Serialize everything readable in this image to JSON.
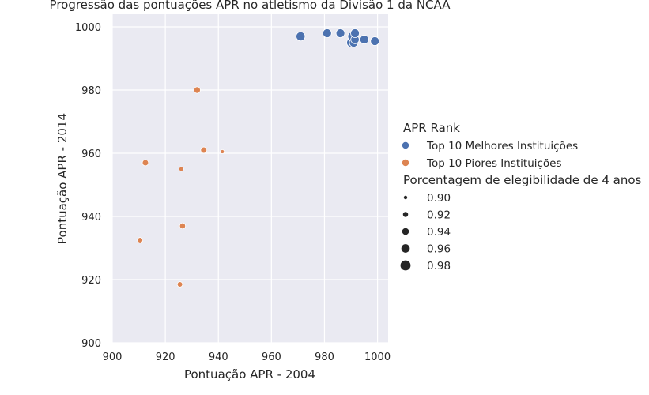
{
  "chart_data": {
    "type": "scatter",
    "title": "Progressão das pontuações APR no atletismo da Divisão 1 da NCAA",
    "xlabel": "Pontuação APR - 2004",
    "ylabel": "Pontuação APR - 2014",
    "xlim": [
      900,
      1004
    ],
    "ylim": [
      900,
      1004
    ],
    "xticks": [
      900,
      920,
      940,
      960,
      980,
      1000
    ],
    "yticks": [
      900,
      920,
      940,
      960,
      980,
      1000
    ],
    "grid": true,
    "legend_placement": "right",
    "hue_legend_title": "APR Rank",
    "size_legend_title": "Porcentagem de elegibilidade de 4 anos",
    "size_legend_values": [
      "0.90",
      "0.92",
      "0.94",
      "0.96",
      "0.98"
    ],
    "series": [
      {
        "name": "Top 10 Melhores Instituições",
        "color": "#4c72b0",
        "points": [
          {
            "x": 971,
            "y": 997,
            "size": 0.99
          },
          {
            "x": 981,
            "y": 998,
            "size": 0.985
          },
          {
            "x": 986,
            "y": 998,
            "size": 0.985
          },
          {
            "x": 990,
            "y": 995,
            "size": 0.985
          },
          {
            "x": 990.5,
            "y": 997,
            "size": 0.99
          },
          {
            "x": 991,
            "y": 995,
            "size": 0.985
          },
          {
            "x": 991.5,
            "y": 996,
            "size": 0.98
          },
          {
            "x": 991.5,
            "y": 998,
            "size": 0.985
          },
          {
            "x": 995,
            "y": 996,
            "size": 0.985
          },
          {
            "x": 999,
            "y": 995.5,
            "size": 0.985
          }
        ]
      },
      {
        "name": "Top 10 Piores Instituições",
        "color": "#dd8452",
        "points": [
          {
            "x": 932,
            "y": 980,
            "size": 0.945
          },
          {
            "x": 934.5,
            "y": 961,
            "size": 0.94
          },
          {
            "x": 941.5,
            "y": 960.5,
            "size": 0.9
          },
          {
            "x": 912.5,
            "y": 957,
            "size": 0.94
          },
          {
            "x": 926,
            "y": 955,
            "size": 0.91
          },
          {
            "x": 926.5,
            "y": 937,
            "size": 0.935
          },
          {
            "x": 910.5,
            "y": 932.5,
            "size": 0.925
          },
          {
            "x": 925.5,
            "y": 918.5,
            "size": 0.925
          }
        ]
      }
    ]
  }
}
